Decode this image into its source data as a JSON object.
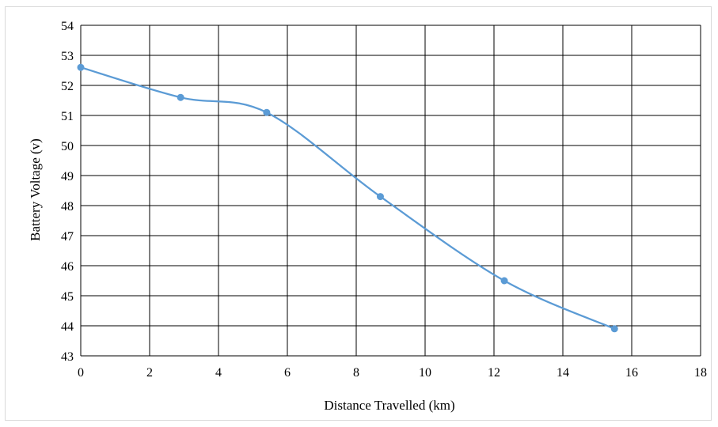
{
  "chart_data": {
    "type": "line",
    "title": "",
    "xlabel": "Distance Travelled  (km)",
    "ylabel": "Battery Voltage  (v)",
    "xlim": [
      0,
      18
    ],
    "ylim": [
      43,
      54
    ],
    "xticks": [
      0,
      2,
      4,
      6,
      8,
      10,
      12,
      14,
      16,
      18
    ],
    "yticks": [
      43,
      44,
      45,
      46,
      47,
      48,
      49,
      50,
      51,
      52,
      53,
      54
    ],
    "grid": true,
    "smooth": true,
    "series": [
      {
        "color": "#5b9bd5",
        "x": [
          0,
          2.9,
          5.4,
          8.7,
          12.3,
          15.5
        ],
        "y": [
          52.6,
          51.6,
          51.1,
          48.3,
          45.5,
          43.9
        ]
      }
    ]
  }
}
